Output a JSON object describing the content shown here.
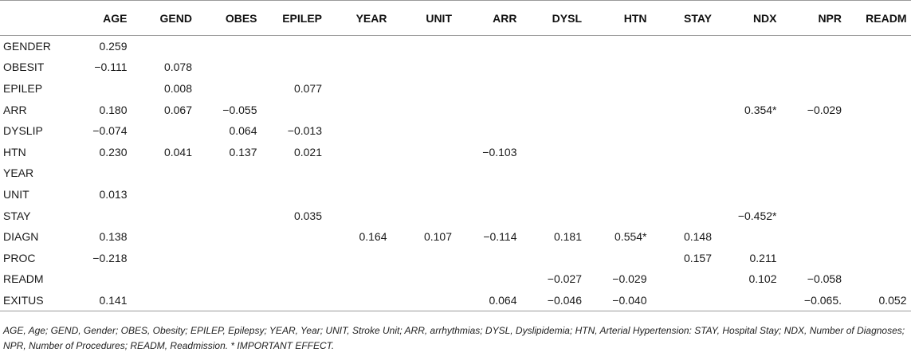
{
  "table": {
    "headers": [
      "",
      "AGE",
      "GEND",
      "OBES",
      "EPILEP",
      "YEAR",
      "UNIT",
      "ARR",
      "DYSL",
      "HTN",
      "STAY",
      "NDX",
      "NPR",
      "READM"
    ],
    "rows": [
      [
        "GENDER",
        "0.259",
        "",
        "",
        "",
        "",
        "",
        "",
        "",
        "",
        "",
        "",
        "",
        ""
      ],
      [
        "OBESIT",
        "−0.111",
        "0.078",
        "",
        "",
        "",
        "",
        "",
        "",
        "",
        "",
        "",
        "",
        ""
      ],
      [
        "EPILEP",
        "",
        "0.008",
        "",
        "0.077",
        "",
        "",
        "",
        "",
        "",
        "",
        "",
        "",
        ""
      ],
      [
        "ARR",
        "0.180",
        "0.067",
        "−0.055",
        "",
        "",
        "",
        "",
        "",
        "",
        "",
        "0.354*",
        "−0.029",
        ""
      ],
      [
        "DYSLIP",
        "−0.074",
        "",
        "0.064",
        "−0.013",
        "",
        "",
        "",
        "",
        "",
        "",
        "",
        "",
        ""
      ],
      [
        "HTN",
        "0.230",
        "0.041",
        "0.137",
        "0.021",
        "",
        "",
        "−0.103",
        "",
        "",
        "",
        "",
        "",
        ""
      ],
      [
        "YEAR",
        "",
        "",
        "",
        "",
        "",
        "",
        "",
        "",
        "",
        "",
        "",
        "",
        ""
      ],
      [
        "UNIT",
        "0.013",
        "",
        "",
        "",
        "",
        "",
        "",
        "",
        "",
        "",
        "",
        "",
        ""
      ],
      [
        "STAY",
        "",
        "",
        "",
        "0.035",
        "",
        "",
        "",
        "",
        "",
        "",
        "−0.452*",
        "",
        ""
      ],
      [
        "DIAGN",
        "0.138",
        "",
        "",
        "",
        "0.164",
        "0.107",
        "−0.114",
        "0.181",
        "0.554*",
        "0.148",
        "",
        "",
        ""
      ],
      [
        "PROC",
        "−0.218",
        "",
        "",
        "",
        "",
        "",
        "",
        "",
        "",
        "0.157",
        "0.211",
        "",
        ""
      ],
      [
        "READM",
        "",
        "",
        "",
        "",
        "",
        "",
        "",
        "−0.027",
        "−0.029",
        "",
        "0.102",
        "−0.058",
        ""
      ],
      [
        "EXITUS",
        "0.141",
        "",
        "",
        "",
        "",
        "",
        "0.064",
        "−0.046",
        "−0.040",
        "",
        "",
        "−0.065.",
        "0.052"
      ]
    ]
  },
  "footnote": "AGE, Age; GEND, Gender; OBES, Obesity; EPILEP, Epilepsy; YEAR, Year; UNIT, Stroke Unit; ARR, arrhythmias; DYSL, Dyslipidemia; HTN, Arterial Hypertension: STAY, Hospital Stay; NDX, Number of Diagnoses; NPR, Number of Procedures; READM, Readmission. * IMPORTANT EFFECT."
}
